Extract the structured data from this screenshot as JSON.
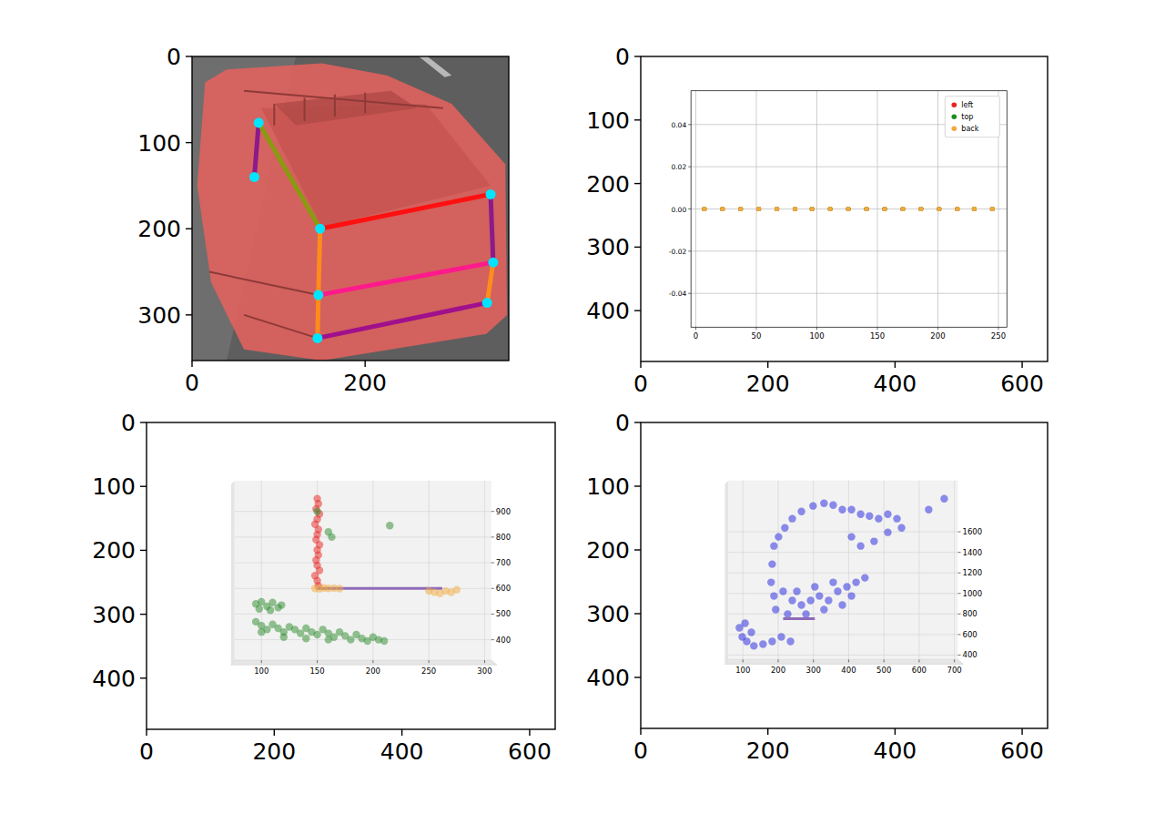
{
  "chart_data": [
    {
      "type": "image",
      "xlim": [
        0,
        366
      ],
      "ylim": [
        353,
        0
      ],
      "xticks": [
        0,
        200
      ],
      "yticks": [
        0,
        100,
        200,
        300
      ],
      "points": {
        "x": [
          77,
          72,
          148,
          345,
          146,
          348,
          341,
          145
        ],
        "y": [
          77,
          140,
          200,
          160,
          277,
          239,
          286,
          327
        ],
        "color": "#00e5ff"
      },
      "segments": [
        {
          "x": [
            77,
            72
          ],
          "y": [
            77,
            140
          ],
          "color": "#8b1a8b"
        },
        {
          "x": [
            77,
            148
          ],
          "y": [
            77,
            200
          ],
          "color": "#8a9a10"
        },
        {
          "x": [
            148,
            345
          ],
          "y": [
            200,
            160
          ],
          "color": "#ff1010"
        },
        {
          "x": [
            148,
            146
          ],
          "y": [
            200,
            277
          ],
          "color": "#ff8c1a"
        },
        {
          "x": [
            345,
            348
          ],
          "y": [
            160,
            239
          ],
          "color": "#8b1a8b"
        },
        {
          "x": [
            146,
            348
          ],
          "y": [
            277,
            239
          ],
          "color": "#ff1a8c"
        },
        {
          "x": [
            146,
            145
          ],
          "y": [
            277,
            327
          ],
          "color": "#ff8c1a"
        },
        {
          "x": [
            348,
            341
          ],
          "y": [
            239,
            286
          ],
          "color": "#ff8c1a"
        },
        {
          "x": [
            145,
            341
          ],
          "y": [
            327,
            286
          ],
          "color": "#a0108c"
        }
      ]
    },
    {
      "type": "image",
      "xlim": [
        0,
        640
      ],
      "ylim": [
        480,
        0
      ],
      "xticks": [
        0,
        200,
        400,
        600
      ],
      "yticks": [
        0,
        100,
        200,
        300,
        400
      ],
      "inset": {
        "type": "scatter",
        "xlim": [
          -4,
          257
        ],
        "ylim": [
          -0.056,
          0.056
        ],
        "xticks": [
          0,
          50,
          100,
          150,
          200,
          250
        ],
        "yticks": [
          -0.04,
          -0.02,
          {
            "value": 0,
            "label": "0.00"
          },
          0.02,
          0.04
        ],
        "grid": true,
        "legend": "upper right",
        "series": [
          {
            "name": "left",
            "color": "#e8221e",
            "marker": "circle",
            "x": [
              7,
              22,
              37,
              52,
              67,
              82,
              96,
              111,
              126,
              141,
              156,
              171,
              186,
              201,
              216,
              230,
              245
            ],
            "y": [
              0,
              0,
              0,
              0,
              0,
              0,
              0,
              0,
              0,
              0,
              0,
              0,
              0,
              0,
              0,
              0,
              0
            ]
          },
          {
            "name": "top",
            "color": "#1e8c1e",
            "marker": "circle",
            "x": [
              7,
              22,
              37,
              52,
              67,
              82,
              96,
              111,
              126,
              141,
              156,
              171,
              186,
              201,
              216,
              230,
              245
            ],
            "y": [
              0,
              0,
              0,
              0,
              0,
              0,
              0,
              0,
              0,
              0,
              0,
              0,
              0,
              0,
              0,
              0,
              0
            ]
          },
          {
            "name": "back",
            "color": "#f2a93b",
            "marker": "circle",
            "x": [
              7,
              22,
              37,
              52,
              67,
              82,
              96,
              111,
              126,
              141,
              156,
              171,
              186,
              201,
              216,
              230,
              245
            ],
            "y": [
              0,
              0,
              0,
              0,
              0,
              0,
              0,
              0,
              0,
              0,
              0,
              0,
              0,
              0,
              0,
              0,
              0
            ]
          }
        ]
      }
    },
    {
      "type": "image",
      "xlim": [
        0,
        640
      ],
      "ylim": [
        480,
        0
      ],
      "xticks": [
        0,
        200,
        400,
        600
      ],
      "yticks": [
        0,
        100,
        200,
        300,
        400
      ],
      "inset": {
        "type": "scatter",
        "xlim": [
          76,
          306
        ],
        "ylim": [
          320,
          1020
        ],
        "xticks": [
          100,
          150,
          200,
          250,
          300
        ],
        "yticks": [
          400,
          500,
          600,
          700,
          800,
          900
        ],
        "grid": true,
        "series": [
          {
            "color": "#e8221e",
            "marker": "circle",
            "x": [
              150,
              151,
              149,
              152,
              150,
              148,
              151,
              150,
              149,
              152,
              150,
              151,
              149,
              150,
              152,
              148,
              150,
              151
            ],
            "y": [
              950,
              930,
              910,
              890,
              870,
              850,
              830,
              810,
              790,
              770,
              750,
              730,
              710,
              690,
              670,
              650,
              630,
              610
            ]
          },
          {
            "color": "#2a8a2a",
            "marker": "circle",
            "x": [
              95,
              100,
              105,
              110,
              115,
              98,
              108,
              118,
              95,
              100,
              105,
              110,
              115,
              120,
              125,
              130,
              135,
              140,
              145,
              150,
              155,
              160,
              165,
              170,
              175,
              180,
              185,
              190,
              195,
              200,
              205,
              210,
              100,
              120,
              140,
              160,
              150,
              160,
              163,
              215
            ],
            "y": [
              540,
              548,
              530,
              545,
              525,
              520,
              515,
              535,
              470,
              455,
              440,
              460,
              445,
              430,
              450,
              440,
              425,
              445,
              430,
              420,
              440,
              425,
              410,
              430,
              415,
              400,
              420,
              405,
              395,
              410,
              400,
              395,
              430,
              410,
              405,
              400,
              900,
              820,
              800,
              845
            ]
          },
          {
            "type": "line",
            "color": "#8e6bb8",
            "x": [
              150,
              262
            ],
            "y": [
              600,
              600
            ]
          },
          {
            "color": "#f2a93b",
            "marker": "circle",
            "x": [
              148,
              152,
              156,
              160,
              165,
              170,
              250,
              255,
              260,
              265,
              270,
              275
            ],
            "y": [
              600,
              598,
              602,
              600,
              601,
              599,
              590,
              585,
              580,
              590,
              585,
              595
            ]
          }
        ]
      }
    },
    {
      "type": "image",
      "xlim": [
        0,
        640
      ],
      "ylim": [
        480,
        0
      ],
      "xticks": [
        0,
        200,
        400,
        600
      ],
      "yticks": [
        0,
        100,
        200,
        300,
        400
      ],
      "inset": {
        "type": "scatter",
        "xlim": [
          59,
          710
        ],
        "ylim": [
          356,
          2100
        ],
        "xticks": [
          100,
          200,
          300,
          400,
          500,
          600,
          700
        ],
        "yticks": [
          400,
          600,
          800,
          1000,
          1200,
          1400,
          1600
        ],
        "grid": true,
        "series": [
          {
            "color": "#1f1fe0",
            "marker": "circle",
            "x": [
              188,
              201,
              219,
              240,
              266,
              299,
              330,
              356,
              382,
              408,
              434,
              459,
              485,
              511,
              537,
              550,
              511,
              472,
              434,
              408,
              627,
              671,
              183,
              180,
              188,
              193,
              214,
              240,
              266,
              292,
              317,
              343,
              369,
              395,
              421,
              408,
              382,
              330,
              279,
              227,
              253,
              304,
              356,
              446,
              98,
              111,
              131,
              157,
              183,
              209,
              235,
              90,
              106,
              124
            ],
            "y": [
              1462,
              1551,
              1639,
              1728,
              1798,
              1852,
              1878,
              1860,
              1816,
              1816,
              1772,
              1754,
              1728,
              1772,
              1728,
              1639,
              1595,
              1507,
              1462,
              1551,
              1816,
              1922,
              1285,
              1108,
              975,
              843,
              1020,
              931,
              887,
              931,
              975,
              931,
              1020,
              1064,
              1108,
              975,
              887,
              843,
              798,
              798,
              1020,
              1064,
              1108,
              1152,
              577,
              533,
              489,
              506,
              533,
              577,
              533,
              666,
              710,
              621
            ]
          },
          {
            "type": "line",
            "color": "#8e6bb8",
            "x": [
              214,
              304
            ],
            "y": [
              754,
              754
            ]
          }
        ]
      }
    }
  ]
}
